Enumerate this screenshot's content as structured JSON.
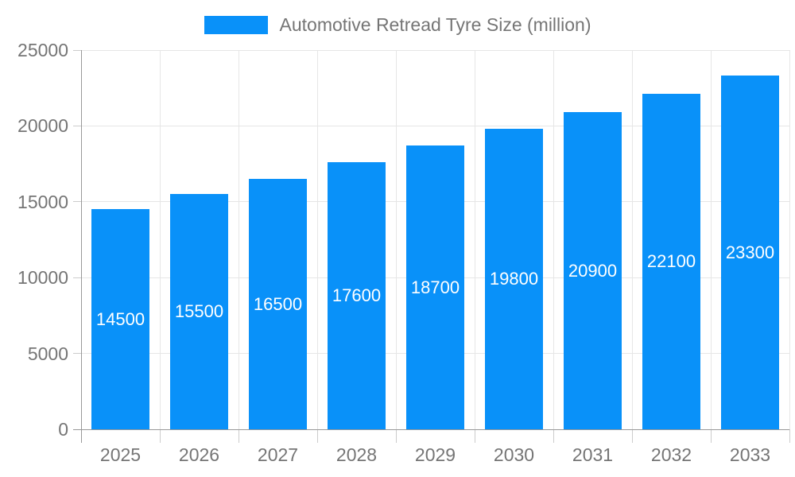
{
  "chart_data": {
    "type": "bar",
    "title": "Automotive Retread Tyre Size (million)",
    "series_name": "Automotive Retread Tyre Size (million)",
    "categories": [
      "2025",
      "2026",
      "2027",
      "2028",
      "2029",
      "2030",
      "2031",
      "2032",
      "2033"
    ],
    "values": [
      14500,
      15500,
      16500,
      17600,
      18700,
      19800,
      20900,
      22100,
      23300
    ],
    "value_labels": [
      "14500",
      "15500",
      "16500",
      "17600",
      "18700",
      "19800",
      "20900",
      "22100",
      "23300"
    ],
    "xlabel": "",
    "ylabel": "",
    "ylim": [
      0,
      25000
    ],
    "yticks": [
      0,
      5000,
      10000,
      15000,
      20000,
      25000
    ],
    "ytick_labels": [
      "0",
      "5000",
      "10000",
      "15000",
      "20000",
      "25000"
    ],
    "grid": true,
    "legend_position": "top",
    "value_label_position": "center-inside",
    "colors": {
      "bar": "#0991f9",
      "value_label": "#ffffff",
      "axis": "#999999",
      "tick": "#cccccc",
      "grid": "#e6e6e6",
      "text": "#757575",
      "background": "#ffffff"
    }
  }
}
